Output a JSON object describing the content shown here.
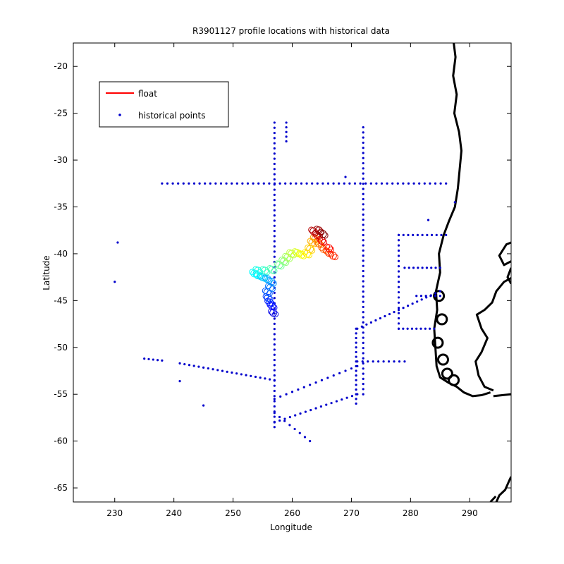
{
  "chart_data": {
    "type": "scatter",
    "title": "R3901127 profile locations with historical data",
    "xlabel": "Longitude",
    "ylabel": "Latitude",
    "xlim": [
      223,
      297
    ],
    "ylim": [
      -66.5,
      -17.5
    ],
    "xticks": [
      230,
      240,
      250,
      260,
      270,
      280,
      290
    ],
    "yticks": [
      -20,
      -25,
      -30,
      -35,
      -40,
      -45,
      -50,
      -55,
      -60,
      -65
    ],
    "grid": false,
    "legend": {
      "placement": "top-left",
      "entries": [
        {
          "label": "float",
          "style": "line",
          "color": "#ff0000"
        },
        {
          "label": "historical points",
          "style": "dot",
          "color": "#0000cc"
        }
      ]
    },
    "series": [
      {
        "name": "historical points",
        "marker": "dot",
        "color": "#0000cc",
        "segments": [
          {
            "from": [
              238,
              -32.5
            ],
            "to": [
              286,
              -32.5
            ],
            "step": 0.9
          },
          {
            "from": [
              257,
              -26
            ],
            "to": [
              257,
              -58.5
            ],
            "step": 0.55
          },
          {
            "from": [
              272,
              -26.5
            ],
            "to": [
              272,
              -55
            ],
            "step": 0.55
          },
          {
            "from": [
              278,
              -38
            ],
            "to": [
              278,
              -48
            ],
            "step": 0.55
          },
          {
            "from": [
              278,
              -38
            ],
            "to": [
              286,
              -38
            ],
            "step": 0.8
          },
          {
            "from": [
              279,
              -41.5
            ],
            "to": [
              285,
              -41.5
            ],
            "step": 0.8
          },
          {
            "from": [
              281,
              -44.5
            ],
            "to": [
              285,
              -44.5
            ],
            "step": 0.8
          },
          {
            "from": [
              278,
              -48
            ],
            "to": [
              284,
              -48
            ],
            "step": 0.8
          },
          {
            "from": [
              271,
              -48
            ],
            "to": [
              285,
              -44
            ],
            "step": 0.8
          },
          {
            "from": [
              270.8,
              -48
            ],
            "to": [
              270.8,
              -56
            ],
            "step": 0.5
          },
          {
            "from": [
              235,
              -51.2
            ],
            "to": [
              238,
              -51.4
            ],
            "step": 0.8
          },
          {
            "from": [
              241,
              -51.7
            ],
            "to": [
              257,
              -53.5
            ],
            "step": 0.8
          },
          {
            "from": [
              257,
              -55.5
            ],
            "to": [
              271,
              -52
            ],
            "step": 1.0
          },
          {
            "from": [
              257,
              -58
            ],
            "to": [
              271,
              -55
            ],
            "step": 0.9
          },
          {
            "from": [
              257,
              -57
            ],
            "to": [
              263,
              -60
            ],
            "step": 0.9
          },
          {
            "from": [
              271,
              -51.5
            ],
            "to": [
              279,
              -51.5
            ],
            "step": 0.9
          },
          {
            "from": [
              259,
              -26
            ],
            "to": [
              259,
              -28
            ],
            "step": 0.55
          }
        ],
        "points": [
          [
            230.5,
            -38.8
          ],
          [
            230,
            -43
          ],
          [
            241,
            -53.6
          ],
          [
            245,
            -56.2
          ],
          [
            269,
            -31.8
          ],
          [
            283,
            -36.4
          ],
          [
            287.5,
            -34.5
          ]
        ]
      },
      {
        "name": "float",
        "marker": "circle",
        "colormap": "jet",
        "points": [
          [
            256.8,
            -46.3
          ],
          [
            256.6,
            -45.6
          ],
          [
            256.2,
            -45.2
          ],
          [
            255.9,
            -44.7
          ],
          [
            255.8,
            -44.1
          ],
          [
            256.3,
            -43.6
          ],
          [
            256.5,
            -43.0
          ],
          [
            255.8,
            -42.7
          ],
          [
            255.0,
            -42.5
          ],
          [
            254.2,
            -42.3
          ],
          [
            253.6,
            -42.1
          ],
          [
            254.2,
            -41.8
          ],
          [
            255.4,
            -41.8
          ],
          [
            256.6,
            -41.7
          ],
          [
            257.8,
            -41.2
          ],
          [
            258.6,
            -40.8
          ],
          [
            259.2,
            -40.4
          ],
          [
            259.9,
            -40.0
          ],
          [
            260.8,
            -39.9
          ],
          [
            261.6,
            -40.1
          ],
          [
            262.5,
            -40.0
          ],
          [
            263.0,
            -39.5
          ],
          [
            263.4,
            -38.8
          ],
          [
            263.9,
            -38.4
          ],
          [
            264.5,
            -38.9
          ],
          [
            265.3,
            -39.5
          ],
          [
            266.2,
            -39.9
          ],
          [
            266.9,
            -40.2
          ],
          [
            266.2,
            -39.4
          ],
          [
            265.0,
            -38.6
          ],
          [
            264.2,
            -38.0
          ],
          [
            263.6,
            -37.6
          ],
          [
            264.5,
            -37.5
          ],
          [
            265.2,
            -37.9
          ]
        ]
      }
    ]
  }
}
